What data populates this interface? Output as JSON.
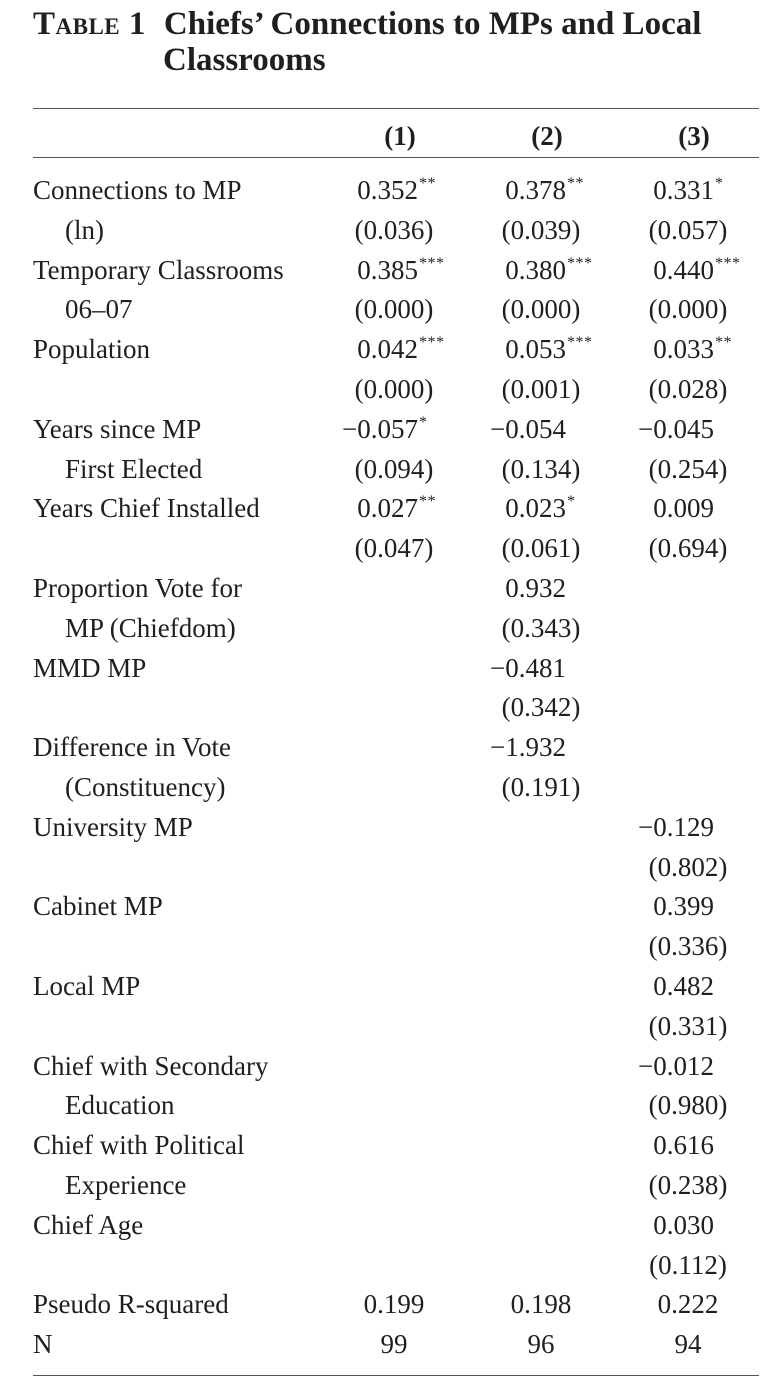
{
  "title": {
    "label": "Table 1",
    "line1": "Chiefs’ Connections to MPs and Local",
    "line2": "Classrooms"
  },
  "columns": [
    "(1)",
    "(2)",
    "(3)"
  ],
  "rows": [
    {
      "label": [
        "Connections to MP",
        "(ln)"
      ],
      "coef": [
        {
          "v": "0.352",
          "s": "**"
        },
        {
          "v": "0.378",
          "s": "**"
        },
        {
          "v": "0.331",
          "s": "*"
        }
      ],
      "se": [
        "(0.036)",
        "(0.039)",
        "(0.057)"
      ]
    },
    {
      "label": [
        "Temporary Classrooms",
        "06–07"
      ],
      "coef": [
        {
          "v": "0.385",
          "s": "***"
        },
        {
          "v": "0.380",
          "s": "***"
        },
        {
          "v": "0.440",
          "s": "***"
        }
      ],
      "se": [
        "(0.000)",
        "(0.000)",
        "(0.000)"
      ]
    },
    {
      "label": [
        "Population"
      ],
      "coef": [
        {
          "v": "0.042",
          "s": "***"
        },
        {
          "v": "0.053",
          "s": "***"
        },
        {
          "v": "0.033",
          "s": "**"
        }
      ],
      "se": [
        "(0.000)",
        "(0.001)",
        "(0.028)"
      ]
    },
    {
      "label": [
        "Years since MP",
        "First Elected"
      ],
      "coef": [
        {
          "v": "−0.057",
          "s": "*"
        },
        {
          "v": "−0.054",
          "s": ""
        },
        {
          "v": "−0.045",
          "s": ""
        }
      ],
      "se": [
        "(0.094)",
        "(0.134)",
        "(0.254)"
      ]
    },
    {
      "label": [
        "Years Chief Installed"
      ],
      "coef": [
        {
          "v": "0.027",
          "s": "**"
        },
        {
          "v": "0.023",
          "s": "*"
        },
        {
          "v": "0.009",
          "s": ""
        }
      ],
      "se": [
        "(0.047)",
        "(0.061)",
        "(0.694)"
      ]
    },
    {
      "label": [
        "Proportion Vote for",
        "MP (Chiefdom)"
      ],
      "coef": [
        null,
        {
          "v": "0.932",
          "s": ""
        },
        null
      ],
      "se": [
        null,
        "(0.343)",
        null
      ]
    },
    {
      "label": [
        "MMD MP"
      ],
      "coef": [
        null,
        {
          "v": "−0.481",
          "s": ""
        },
        null
      ],
      "se": [
        null,
        "(0.342)",
        null
      ]
    },
    {
      "label": [
        "Difference in Vote",
        "(Constituency)"
      ],
      "coef": [
        null,
        {
          "v": "−1.932",
          "s": ""
        },
        null
      ],
      "se": [
        null,
        "(0.191)",
        null
      ]
    },
    {
      "label": [
        "University MP"
      ],
      "coef": [
        null,
        null,
        {
          "v": "−0.129",
          "s": ""
        }
      ],
      "se": [
        null,
        null,
        "(0.802)"
      ]
    },
    {
      "label": [
        "Cabinet MP"
      ],
      "coef": [
        null,
        null,
        {
          "v": "0.399",
          "s": ""
        }
      ],
      "se": [
        null,
        null,
        "(0.336)"
      ]
    },
    {
      "label": [
        "Local MP"
      ],
      "coef": [
        null,
        null,
        {
          "v": "0.482",
          "s": ""
        }
      ],
      "se": [
        null,
        null,
        "(0.331)"
      ]
    },
    {
      "label": [
        "Chief with Secondary",
        "Education"
      ],
      "coef": [
        null,
        null,
        {
          "v": "−0.012",
          "s": ""
        }
      ],
      "se": [
        null,
        null,
        "(0.980)"
      ]
    },
    {
      "label": [
        "Chief with Political",
        "Experience"
      ],
      "coef": [
        null,
        null,
        {
          "v": "0.616",
          "s": ""
        }
      ],
      "se": [
        null,
        null,
        "(0.238)"
      ]
    },
    {
      "label": [
        "Chief Age"
      ],
      "coef": [
        null,
        null,
        {
          "v": "0.030",
          "s": ""
        }
      ],
      "se": [
        null,
        null,
        "(0.112)"
      ]
    }
  ],
  "stats": [
    {
      "label": "Pseudo R-squared",
      "values": [
        "0.199",
        "0.198",
        "0.222"
      ]
    },
    {
      "label": "N",
      "values": [
        "99",
        "96",
        "94"
      ]
    }
  ]
}
